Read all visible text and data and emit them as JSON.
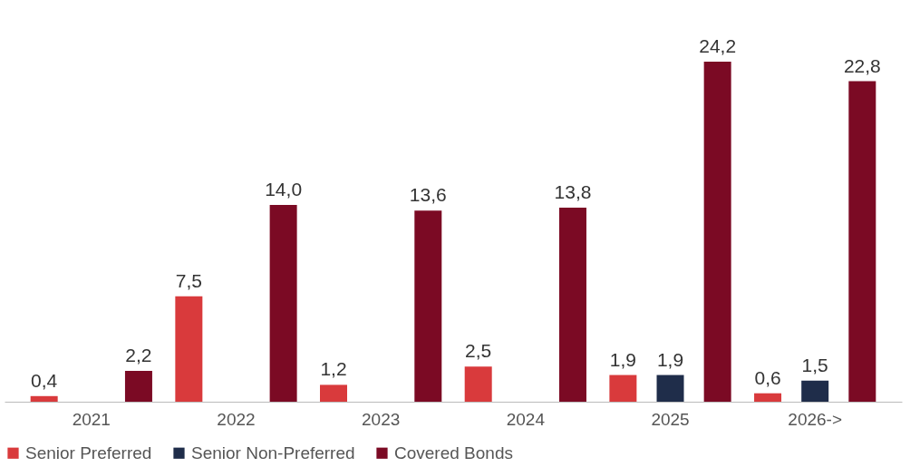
{
  "chart_data": {
    "type": "bar",
    "categories": [
      "2021",
      "2022",
      "2023",
      "2024",
      "2025",
      "2026->"
    ],
    "series": [
      {
        "name": "Senior Preferred",
        "color": "#d93a3c",
        "values": [
          0.4,
          7.5,
          1.2,
          2.5,
          1.9,
          0.6
        ],
        "value_labels": [
          "0,4",
          "7,5",
          "1,2",
          "2,5",
          "1,9",
          "0,6"
        ]
      },
      {
        "name": "Senior Non-Preferred",
        "color": "#1f2d4a",
        "values": [
          null,
          null,
          null,
          null,
          1.9,
          1.5
        ],
        "value_labels": [
          null,
          null,
          null,
          null,
          "1,9",
          "1,5"
        ]
      },
      {
        "name": "Covered Bonds",
        "color": "#7b0a24",
        "values": [
          2.2,
          14.0,
          13.6,
          13.8,
          24.2,
          22.8
        ],
        "value_labels": [
          "2,2",
          "14,0",
          "13,6",
          "13,8",
          "24,2",
          "22,8"
        ]
      }
    ],
    "legend": "bottom",
    "grid": false
  }
}
